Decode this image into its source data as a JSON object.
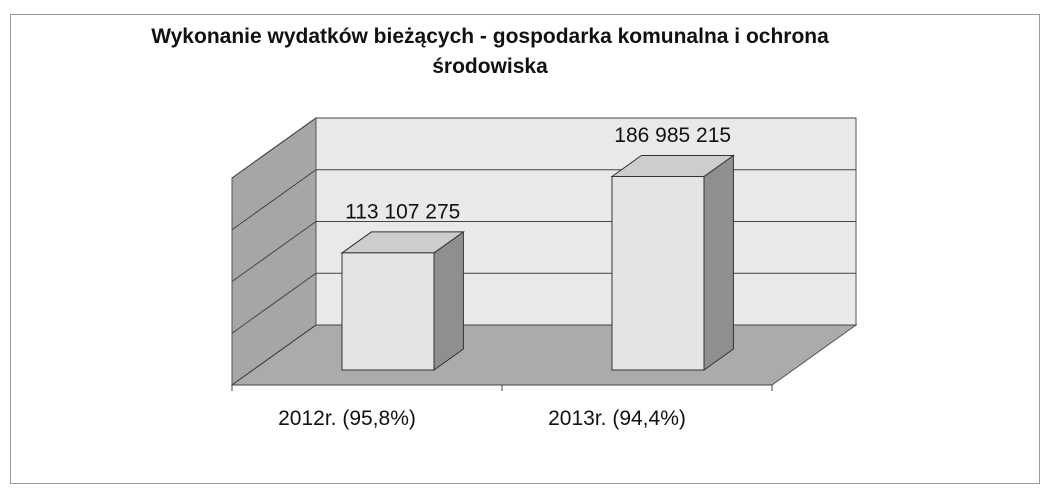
{
  "chart_data": {
    "type": "bar3d",
    "title": "Wykonanie wydatków bieżących - gospodarka komunalna i ochrona środowiska",
    "categories": [
      "2012r. (95,8%)",
      "2013r. (94,4%)"
    ],
    "values": [
      113107275,
      186985215
    ],
    "value_labels": [
      "113 107 275",
      "186 985 215"
    ],
    "color": "#e4e4e4",
    "ylim": [
      0,
      200000000
    ],
    "yticks": [
      0,
      50000000,
      100000000,
      150000000,
      200000000
    ],
    "grid": true
  }
}
